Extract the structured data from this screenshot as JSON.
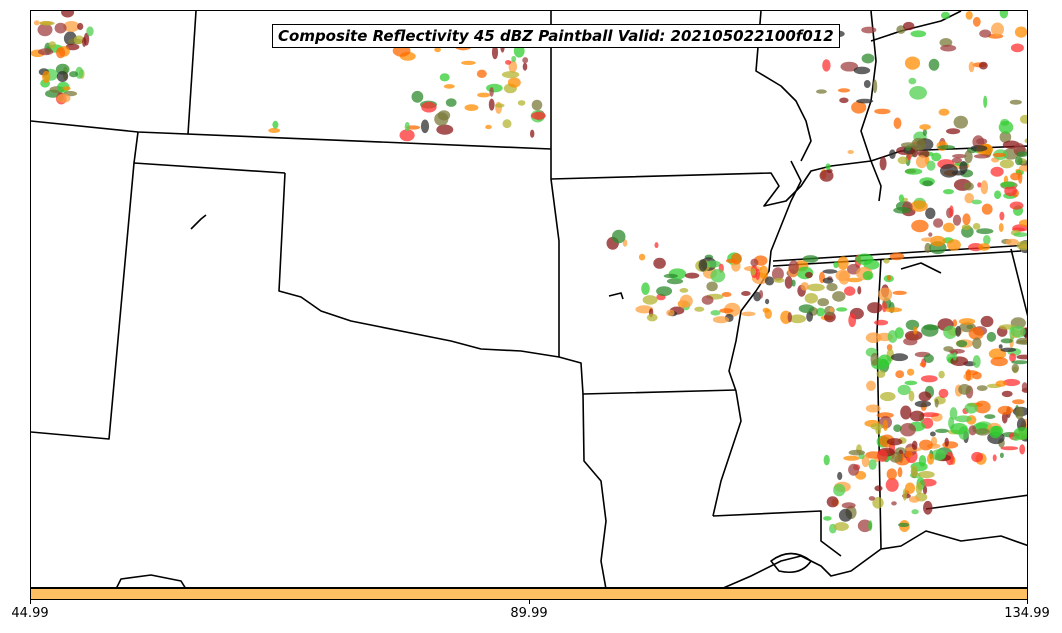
{
  "title": "Composite Reflectivity 45 dBZ Paintball Valid: 202105022100f012",
  "colorbar": {
    "color": "#ffc063",
    "ticks": [
      "44.99",
      "89.99",
      "134.99"
    ]
  },
  "paintball_colors": [
    "#32cd32",
    "#b4b432",
    "#ff3232",
    "#ff8c00",
    "#8b1a1a",
    "#2e8b2e",
    "#7a7a3a",
    "#ff6a00",
    "#303030",
    "#ffa040",
    "#a04040",
    "#50d050"
  ]
}
